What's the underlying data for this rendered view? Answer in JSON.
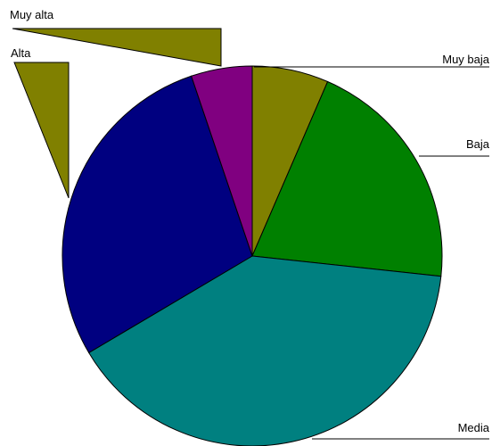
{
  "chart_data": {
    "type": "pie",
    "title": "",
    "categories": [
      "Muy baja",
      "Baja",
      "Media",
      "Alta",
      "Muy alta"
    ],
    "values": [
      6.5,
      20.2,
      39.8,
      28.3,
      5.2
    ],
    "colors": [
      "#808000",
      "#008000",
      "#008080",
      "#000080",
      "#800080"
    ],
    "label_color": "#808000",
    "label_placement": "outside-with-leader-lines",
    "grid": false,
    "legend": "none"
  }
}
